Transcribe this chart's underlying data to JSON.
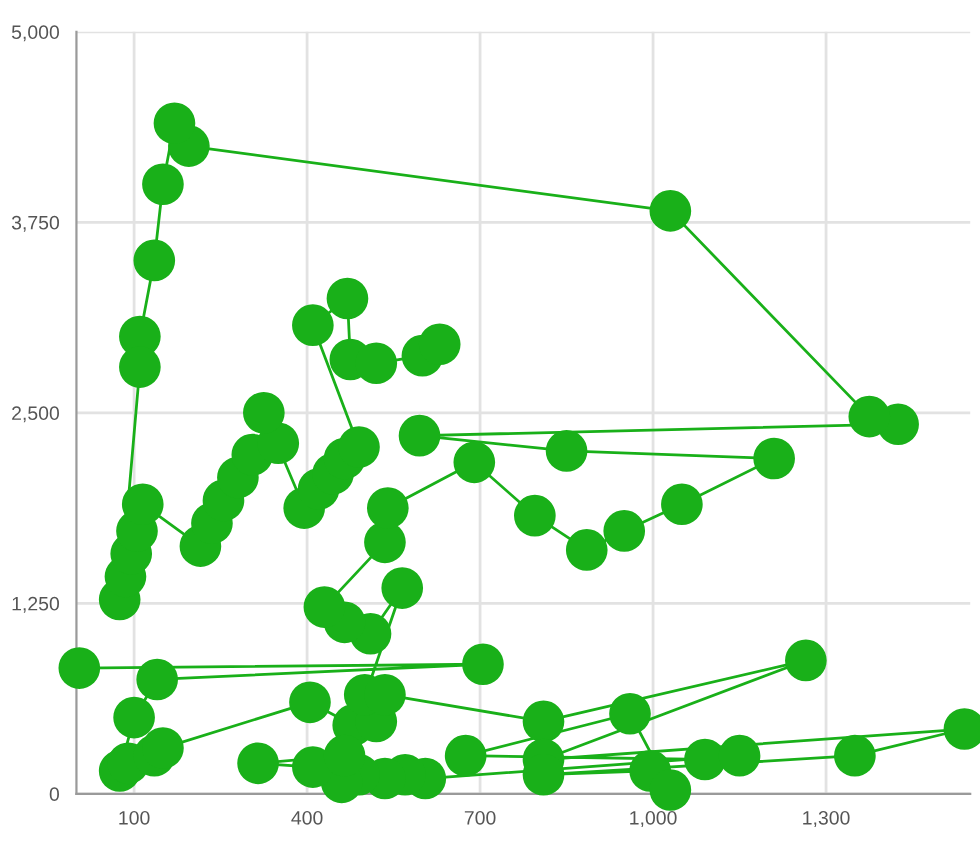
{
  "chart_data": {
    "type": "line",
    "marker": "circle",
    "line_style": "solid",
    "grid": true,
    "x": [
      5,
      705,
      140,
      100,
      75,
      90,
      135,
      150,
      405,
      480,
      520,
      500,
      535,
      810,
      1265,
      810,
      1540,
      1350,
      810,
      995,
      1030,
      960,
      675,
      1090,
      1150,
      605,
      570,
      535,
      490,
      460,
      410,
      315,
      465,
      565,
      510,
      465,
      430,
      535,
      540,
      690,
      795,
      885,
      950,
      1050,
      1210,
      850,
      595,
      1425,
      1375,
      1030,
      195,
      170,
      150,
      135,
      110,
      110,
      75,
      85,
      95,
      105,
      115,
      215,
      235,
      255,
      280,
      305,
      350,
      325,
      395,
      420,
      445,
      465,
      490,
      410,
      470,
      475,
      520,
      600,
      630
    ],
    "series": [
      {
        "color": "#19b019",
        "values": [
          825,
          850,
          750,
          500,
          150,
          200,
          250,
          300,
          600,
          450,
          475,
          650,
          650,
          475,
          875,
          225,
          425,
          250,
          125,
          150,
          25,
          525,
          250,
          225,
          250,
          100,
          125,
          100,
          125,
          75,
          175,
          200,
          250,
          1350,
          1050,
          1125,
          1225,
          1650,
          1875,
          2175,
          1825,
          1600,
          1725,
          1900,
          2200,
          2250,
          2350,
          2425,
          2475,
          3825,
          4250,
          4400,
          4000,
          3500,
          3000,
          2800,
          1275,
          1425,
          1575,
          1725,
          1900,
          1625,
          1775,
          1925,
          2075,
          2225,
          2300,
          2500,
          1875,
          2000,
          2100,
          2200,
          2275,
          3075,
          3250,
          2850,
          2825,
          2875,
          2950
        ]
      }
    ],
    "xlim": [
      0,
      1550
    ],
    "ylim": [
      0,
      5000
    ],
    "xticks": [
      100,
      400,
      700,
      {
        "value": 1000,
        "label": "1,000"
      },
      {
        "value": 1300,
        "label": "1,300"
      }
    ],
    "yticks": [
      0,
      {
        "value": 1250,
        "label": "1,250"
      },
      {
        "value": 2500,
        "label": "2,500"
      },
      {
        "value": 3750,
        "label": "3,750"
      },
      {
        "value": 5000,
        "label": "5,000"
      }
    ]
  }
}
